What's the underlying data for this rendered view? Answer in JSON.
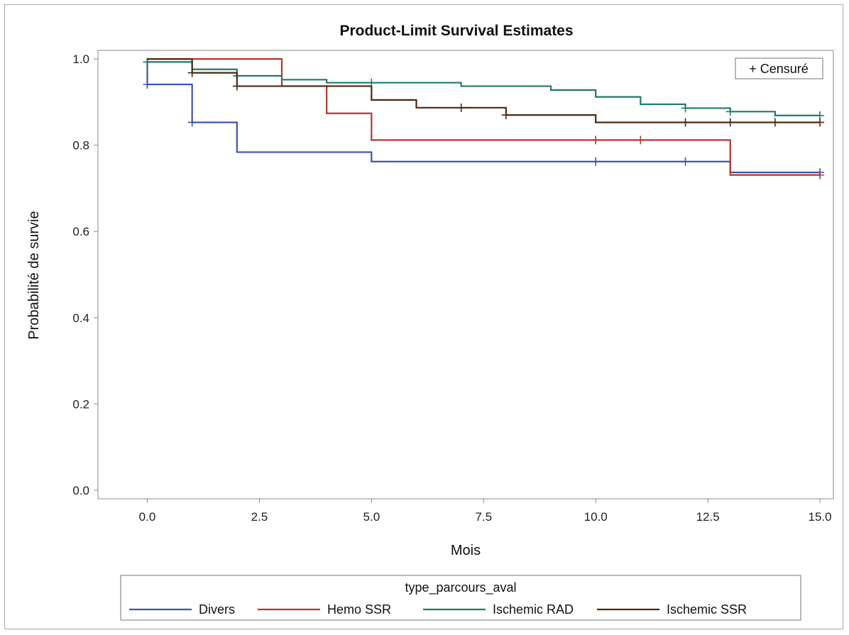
{
  "chart_data": {
    "type": "line",
    "title": "Product-Limit Survival Estimates",
    "xlabel": "Mois",
    "ylabel": "Probabilité de survie",
    "xlim": [
      -1.1,
      15.3
    ],
    "ylim": [
      -0.02,
      1.02
    ],
    "x_ticks": [
      0,
      2.5,
      5,
      7.5,
      10,
      12.5,
      15
    ],
    "x_tick_labels": [
      "0.0",
      "2.5",
      "5.0",
      "7.5",
      "10.0",
      "12.5",
      "15.0"
    ],
    "y_ticks": [
      0,
      0.2,
      0.4,
      0.6,
      0.8,
      1.0
    ],
    "y_tick_labels": [
      "0.0",
      "0.2",
      "0.4",
      "0.6",
      "0.8",
      "1.0"
    ],
    "grid": false,
    "inset_legend": {
      "label": "+ Censuré",
      "position": "top-right"
    },
    "legend": {
      "title": "type_parcours_aval",
      "position": "bottom"
    },
    "series": [
      {
        "name": "Divers",
        "color": "#3f55a6",
        "steps": [
          [
            0,
            1.0
          ],
          [
            0,
            0.941
          ],
          [
            1,
            0.853
          ],
          [
            2,
            0.784
          ],
          [
            5,
            0.762
          ],
          [
            13,
            0.737
          ]
        ],
        "end_x": 15,
        "censored": [
          [
            0,
            0.941
          ],
          [
            1,
            0.853
          ],
          [
            10,
            0.762
          ],
          [
            12,
            0.762
          ],
          [
            15,
            0.737
          ]
        ]
      },
      {
        "name": "Hemo SSR",
        "color": "#b0382e",
        "steps": [
          [
            0,
            1.0
          ],
          [
            3,
            0.937
          ],
          [
            4,
            0.874
          ],
          [
            5,
            0.812
          ],
          [
            13,
            0.731
          ]
        ],
        "end_x": 15,
        "censored": [
          [
            10,
            0.812
          ],
          [
            11,
            0.812
          ],
          [
            15,
            0.731
          ]
        ]
      },
      {
        "name": "Ischemic RAD",
        "color": "#1f7a6b",
        "steps": [
          [
            0,
            0.993
          ],
          [
            1,
            0.976
          ],
          [
            2,
            0.961
          ],
          [
            3,
            0.952
          ],
          [
            4,
            0.945
          ],
          [
            7,
            0.937
          ],
          [
            9,
            0.928
          ],
          [
            10,
            0.912
          ],
          [
            11,
            0.895
          ],
          [
            12,
            0.886
          ],
          [
            13,
            0.878
          ],
          [
            14,
            0.869
          ]
        ],
        "end_x": 15,
        "censored": [
          [
            0,
            0.993
          ],
          [
            2,
            0.961
          ],
          [
            5,
            0.945
          ],
          [
            12,
            0.886
          ],
          [
            13,
            0.878
          ],
          [
            15,
            0.869
          ]
        ]
      },
      {
        "name": "Ischemic SSR",
        "color": "#4a2a10",
        "steps": [
          [
            0,
            1.0
          ],
          [
            1,
            0.968
          ],
          [
            2,
            0.937
          ],
          [
            5,
            0.905
          ],
          [
            6,
            0.887
          ],
          [
            8,
            0.87
          ],
          [
            10,
            0.853
          ]
        ],
        "end_x": 15,
        "censored": [
          [
            1,
            0.968
          ],
          [
            2,
            0.937
          ],
          [
            7,
            0.887
          ],
          [
            8,
            0.87
          ],
          [
            12,
            0.853
          ],
          [
            13,
            0.853
          ],
          [
            14,
            0.853
          ],
          [
            15,
            0.853
          ]
        ]
      }
    ]
  }
}
